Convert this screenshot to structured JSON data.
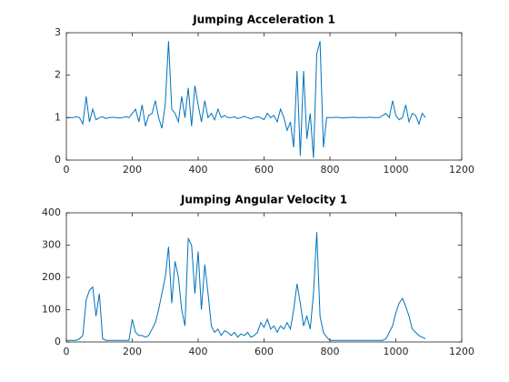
{
  "chart_data": [
    {
      "type": "line",
      "title": "Jumping Acceleration 1",
      "x": [
        0,
        10,
        20,
        30,
        40,
        50,
        60,
        70,
        80,
        90,
        100,
        110,
        120,
        130,
        140,
        150,
        160,
        170,
        180,
        190,
        200,
        210,
        220,
        230,
        240,
        250,
        260,
        270,
        280,
        290,
        300,
        310,
        320,
        330,
        340,
        350,
        360,
        370,
        380,
        390,
        400,
        410,
        420,
        430,
        440,
        450,
        460,
        470,
        480,
        490,
        500,
        510,
        520,
        530,
        540,
        550,
        560,
        570,
        580,
        590,
        600,
        610,
        620,
        630,
        640,
        650,
        660,
        670,
        680,
        690,
        700,
        710,
        720,
        730,
        740,
        750,
        760,
        770,
        780,
        790,
        800,
        810,
        820,
        830,
        840,
        850,
        860,
        870,
        880,
        890,
        900,
        910,
        920,
        930,
        940,
        950,
        960,
        970,
        980,
        990,
        1000,
        1010,
        1020,
        1030,
        1040,
        1050,
        1060,
        1070,
        1080,
        1090
      ],
      "series": [
        {
          "color": "#0072bd",
          "values": [
            1.0,
            1.0,
            1.0,
            1.02,
            1.0,
            0.85,
            1.5,
            0.9,
            1.2,
            0.95,
            1.0,
            1.02,
            0.98,
            1.0,
            1.01,
            1.0,
            0.99,
            1.0,
            1.02,
            1.0,
            1.1,
            1.2,
            0.9,
            1.3,
            0.8,
            1.05,
            1.1,
            1.4,
            1.0,
            0.75,
            1.3,
            2.8,
            1.2,
            1.1,
            0.9,
            1.5,
            1.0,
            1.7,
            0.8,
            1.75,
            1.3,
            0.9,
            1.4,
            1.0,
            1.1,
            0.95,
            1.2,
            1.0,
            1.05,
            1.0,
            1.0,
            1.02,
            0.98,
            1.0,
            1.03,
            1.0,
            0.97,
            1.0,
            1.02,
            1.0,
            0.95,
            1.1,
            1.0,
            1.05,
            0.9,
            1.2,
            1.0,
            0.7,
            0.9,
            0.3,
            2.1,
            0.1,
            2.1,
            0.5,
            1.1,
            0.05,
            2.5,
            2.8,
            0.3,
            1.0,
            1.0,
            1.0,
            1.01,
            1.0,
            0.99,
            1.0,
            1.0,
            1.01,
            1.0,
            1.0,
            1.0,
            1.0,
            1.01,
            1.0,
            1.0,
            1.0,
            1.05,
            1.1,
            1.0,
            1.4,
            1.05,
            0.95,
            1.0,
            1.3,
            0.9,
            1.1,
            1.05,
            0.85,
            1.1,
            1.0
          ]
        }
      ],
      "xlim": [
        0,
        1200
      ],
      "xticks": [
        0,
        200,
        400,
        600,
        800,
        1000,
        1200
      ],
      "ylim": [
        0,
        3
      ],
      "yticks": [
        0,
        1,
        2,
        3
      ]
    },
    {
      "type": "line",
      "title": "Jumping Angular Velocity 1",
      "x": [
        0,
        10,
        20,
        30,
        40,
        50,
        60,
        70,
        80,
        90,
        100,
        110,
        120,
        130,
        140,
        150,
        160,
        170,
        180,
        190,
        200,
        210,
        220,
        230,
        240,
        250,
        260,
        270,
        280,
        290,
        300,
        310,
        320,
        330,
        340,
        350,
        360,
        370,
        380,
        390,
        400,
        410,
        420,
        430,
        440,
        450,
        460,
        470,
        480,
        490,
        500,
        510,
        520,
        530,
        540,
        550,
        560,
        570,
        580,
        590,
        600,
        610,
        620,
        630,
        640,
        650,
        660,
        670,
        680,
        690,
        700,
        710,
        720,
        730,
        740,
        750,
        760,
        770,
        780,
        790,
        800,
        810,
        820,
        830,
        840,
        850,
        860,
        870,
        880,
        890,
        900,
        910,
        920,
        930,
        940,
        950,
        960,
        970,
        980,
        990,
        1000,
        1010,
        1020,
        1030,
        1040,
        1050,
        1060,
        1070,
        1080,
        1090
      ],
      "series": [
        {
          "color": "#0072bd",
          "values": [
            5,
            5,
            5,
            5,
            10,
            20,
            130,
            160,
            170,
            80,
            150,
            10,
            5,
            5,
            5,
            5,
            5,
            5,
            5,
            5,
            70,
            30,
            20,
            20,
            15,
            20,
            40,
            60,
            100,
            150,
            200,
            295,
            120,
            250,
            200,
            100,
            50,
            320,
            300,
            150,
            280,
            100,
            240,
            150,
            50,
            30,
            40,
            20,
            35,
            30,
            20,
            30,
            15,
            25,
            20,
            30,
            15,
            20,
            30,
            60,
            45,
            70,
            40,
            50,
            30,
            50,
            40,
            60,
            40,
            100,
            180,
            120,
            50,
            80,
            40,
            150,
            340,
            80,
            30,
            15,
            5,
            5,
            5,
            5,
            5,
            5,
            5,
            5,
            5,
            5,
            5,
            5,
            5,
            5,
            5,
            5,
            5,
            10,
            30,
            50,
            90,
            120,
            135,
            110,
            80,
            40,
            30,
            20,
            15,
            10
          ]
        }
      ],
      "xlim": [
        0,
        1200
      ],
      "xticks": [
        0,
        200,
        400,
        600,
        800,
        1000,
        1200
      ],
      "ylim": [
        0,
        400
      ],
      "yticks": [
        0,
        100,
        200,
        300,
        400
      ]
    }
  ]
}
